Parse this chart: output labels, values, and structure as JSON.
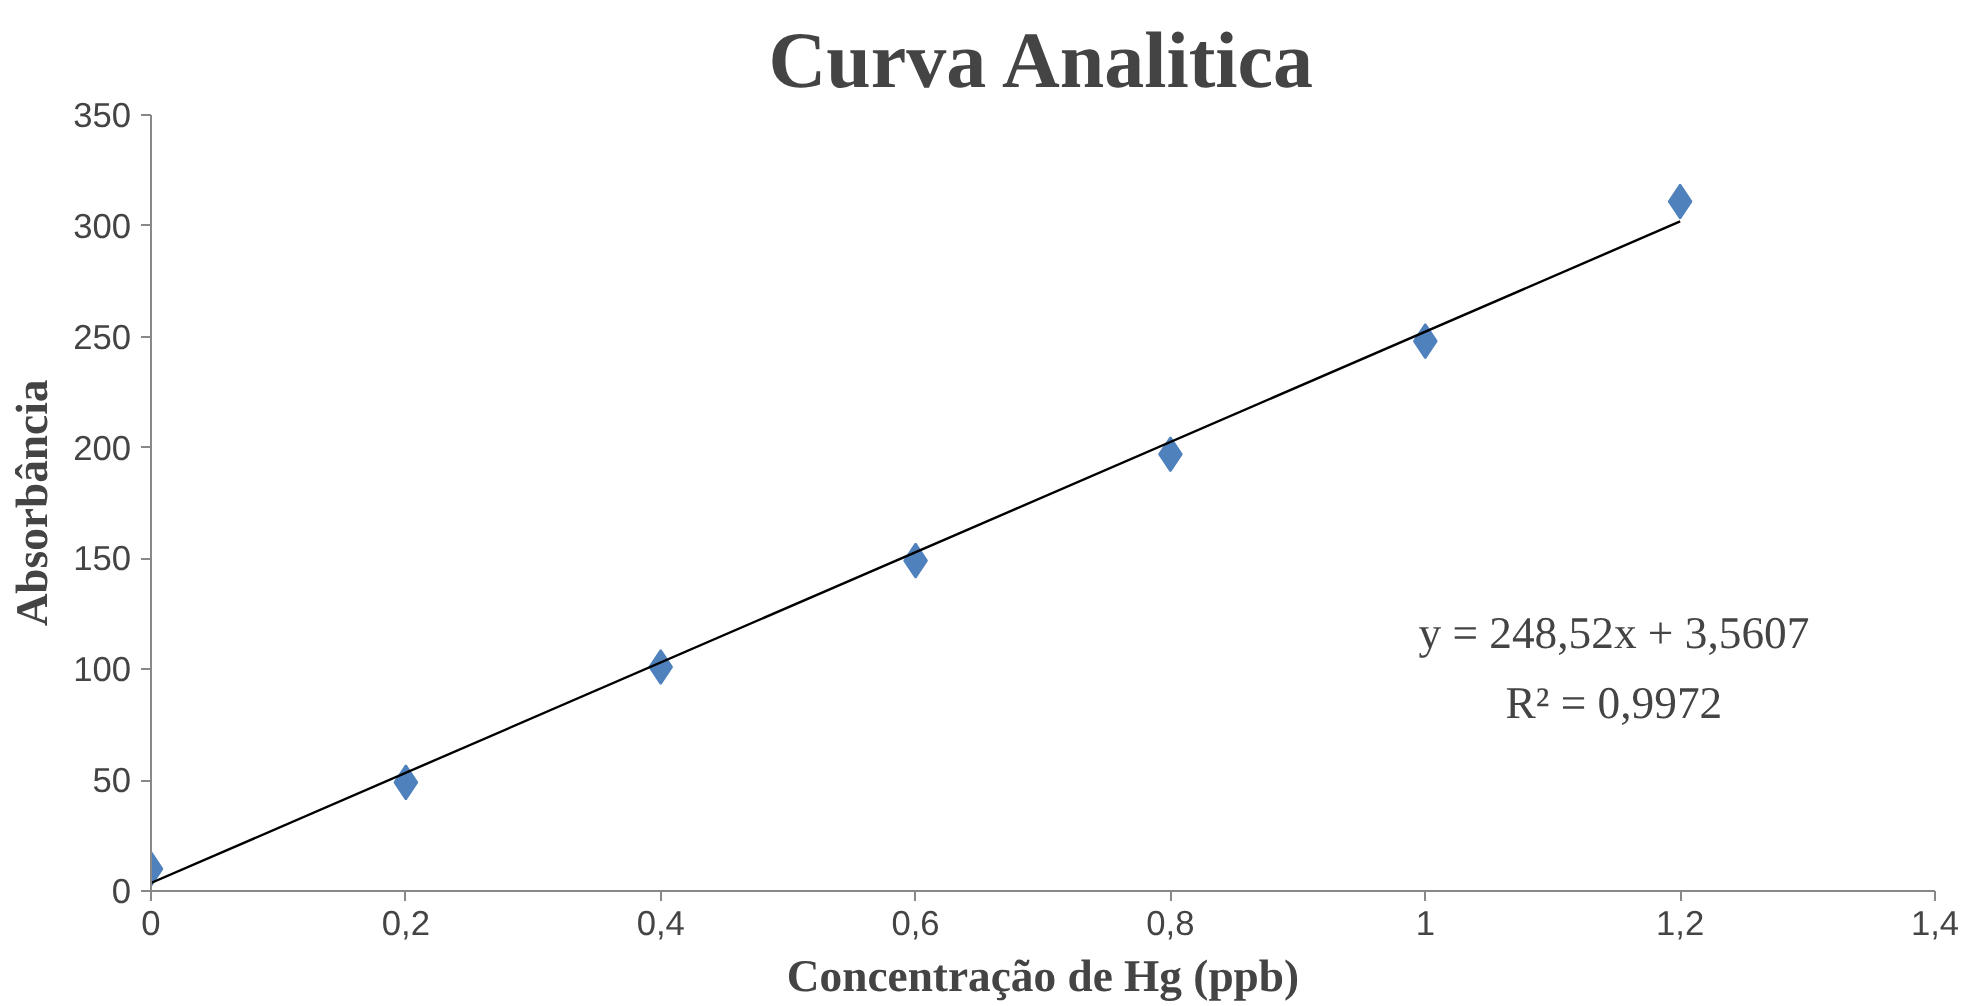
{
  "chart_data": {
    "type": "scatter",
    "title": "Curva Analitica",
    "xlabel": "Concentração de Hg (ppb)",
    "ylabel": "Absorbância",
    "x": [
      0,
      0.2,
      0.4,
      0.6,
      0.8,
      1,
      1.2
    ],
    "series": [
      {
        "color": "#4f81bd",
        "values": [
          10,
          49,
          101,
          149,
          197,
          248,
          311
        ],
        "marker": "diamond"
      },
      {
        "type": "line",
        "color": "#000000",
        "x": [
          0,
          1.2
        ],
        "values": [
          3.6,
          302
        ],
        "marker": "none",
        "line_style": "solid"
      }
    ],
    "xlim": [
      0,
      1.4
    ],
    "ylim": [
      0,
      350
    ],
    "xticks": [
      0,
      {
        "value": 0.2,
        "label": "0,2"
      },
      {
        "value": 0.4,
        "label": "0,4"
      },
      {
        "value": 0.6,
        "label": "0,6"
      },
      {
        "value": 0.8,
        "label": "0,8"
      },
      1,
      {
        "value": 1.2,
        "label": "1,2"
      },
      {
        "value": 1.4,
        "label": "1,4"
      }
    ],
    "yticks": [
      0,
      50,
      100,
      150,
      200,
      250,
      300,
      350
    ],
    "annotations": [
      "y = 248,52x + 3,5607",
      "R² = 0,9972"
    ],
    "grid": false
  }
}
